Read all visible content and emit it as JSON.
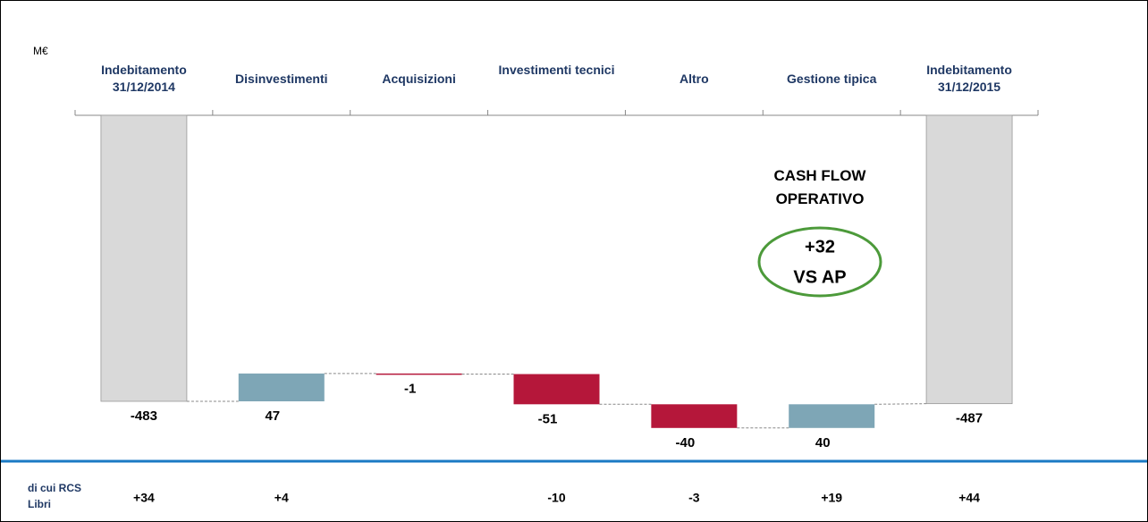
{
  "chart_data": {
    "type": "waterfall",
    "unit": "M€",
    "categories": [
      "Indebitamento 31/12/2014",
      "Disinvestimenti",
      "Acquisizioni",
      "Investimenti tecnici",
      "Altro",
      "Gestione tipica",
      "Indebitamento 31/12/2015"
    ],
    "values": [
      -483,
      47,
      -1,
      -51,
      -40,
      40,
      -487
    ],
    "measures": [
      "total",
      "relative",
      "relative",
      "relative",
      "relative",
      "relative",
      "total"
    ],
    "colors": {
      "total": "#d9d9d9",
      "increase": "#7ea6b6",
      "decrease": "#b5173a"
    },
    "ylim": [
      -560,
      0
    ],
    "annotation": "CASH FLOW OPERATIVO",
    "callout": [
      "+32",
      "VS AP"
    ],
    "footer": {
      "label": "di cui RCS Libri",
      "values": [
        "+34",
        "+4",
        null,
        "-10",
        "-3",
        "+19",
        "+44"
      ]
    }
  }
}
